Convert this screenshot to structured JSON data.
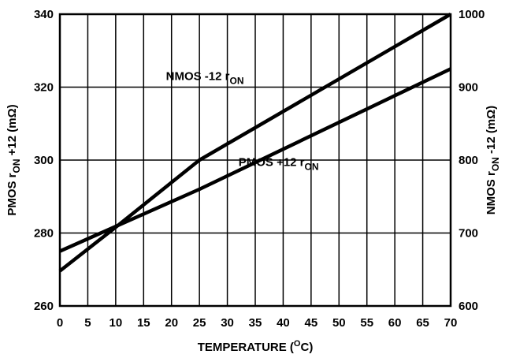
{
  "chart_data": {
    "type": "line",
    "xlabel": {
      "main": "TEMPERATURE (",
      "sup": "O",
      "tail": "C)"
    },
    "ylabel_left": {
      "pre": "PMOS r",
      "sub": "ON",
      "post": " +12 (mΩ)"
    },
    "ylabel_right": {
      "pre": "NMOS r",
      "sub": "ON",
      "post": " -12 (mΩ)"
    },
    "xlim": [
      0,
      70
    ],
    "ylim_left": [
      260,
      340
    ],
    "ylim_right": [
      600,
      1000
    ],
    "x_ticks": [
      0,
      5,
      10,
      15,
      20,
      25,
      30,
      35,
      40,
      45,
      50,
      55,
      60,
      65,
      70
    ],
    "y_ticks_left": [
      260,
      280,
      300,
      320,
      340
    ],
    "y_ticks_right": [
      600,
      700,
      800,
      900,
      1000
    ],
    "grid": true,
    "series": [
      {
        "name": "NMOS -12 rON",
        "axis": "right",
        "x": [
          0,
          10,
          25,
          70
        ],
        "y": [
          648,
          708,
          800,
          1000
        ]
      },
      {
        "name": "PMOS +12 rON",
        "axis": "left",
        "x": [
          0,
          25,
          70
        ],
        "y": [
          275,
          292,
          325
        ]
      }
    ],
    "annotations": [
      {
        "series": "NMOS -12 rON",
        "pre": "NMOS -12 r",
        "sub": "ON",
        "x": 19,
        "y": 910,
        "axis": "right"
      },
      {
        "series": "PMOS +12 rON",
        "pre": "PMOS +12 r",
        "sub": "ON",
        "x": 32,
        "y": 792,
        "axis": "right"
      }
    ]
  }
}
